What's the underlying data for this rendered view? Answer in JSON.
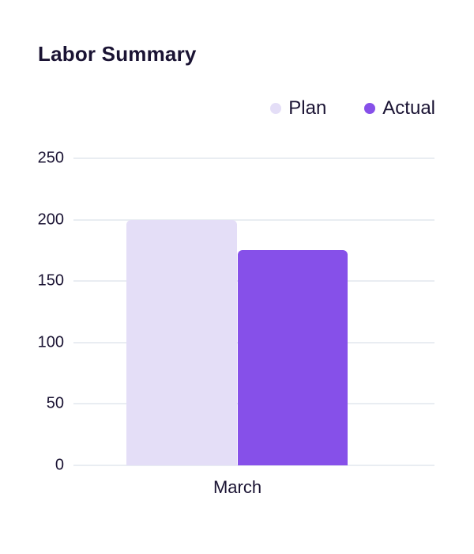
{
  "page": {
    "title": "Labor Summary"
  },
  "legend": {
    "position": "top-right",
    "items": [
      {
        "label": "Plan",
        "color": "#e4def7"
      },
      {
        "label": "Actual",
        "color": "#8650e9"
      }
    ]
  },
  "chart_data": {
    "type": "bar",
    "title": "Labor Summary",
    "categories": [
      "March"
    ],
    "series": [
      {
        "name": "Plan",
        "values": [
          200
        ],
        "color": "#e4def7"
      },
      {
        "name": "Actual",
        "values": [
          175
        ],
        "color": "#8650e9"
      }
    ],
    "xlabel": "",
    "ylabel": "",
    "ylim": [
      0,
      250
    ],
    "yticks": [
      0,
      50,
      100,
      150,
      200,
      250
    ],
    "ytick_labels_top_to_bottom": [
      "250",
      "200",
      "150",
      "100",
      "50",
      "0"
    ],
    "grid": true,
    "grid_color": "#e9edf2",
    "background": "#ffffff",
    "text_color": "#1a1333"
  }
}
